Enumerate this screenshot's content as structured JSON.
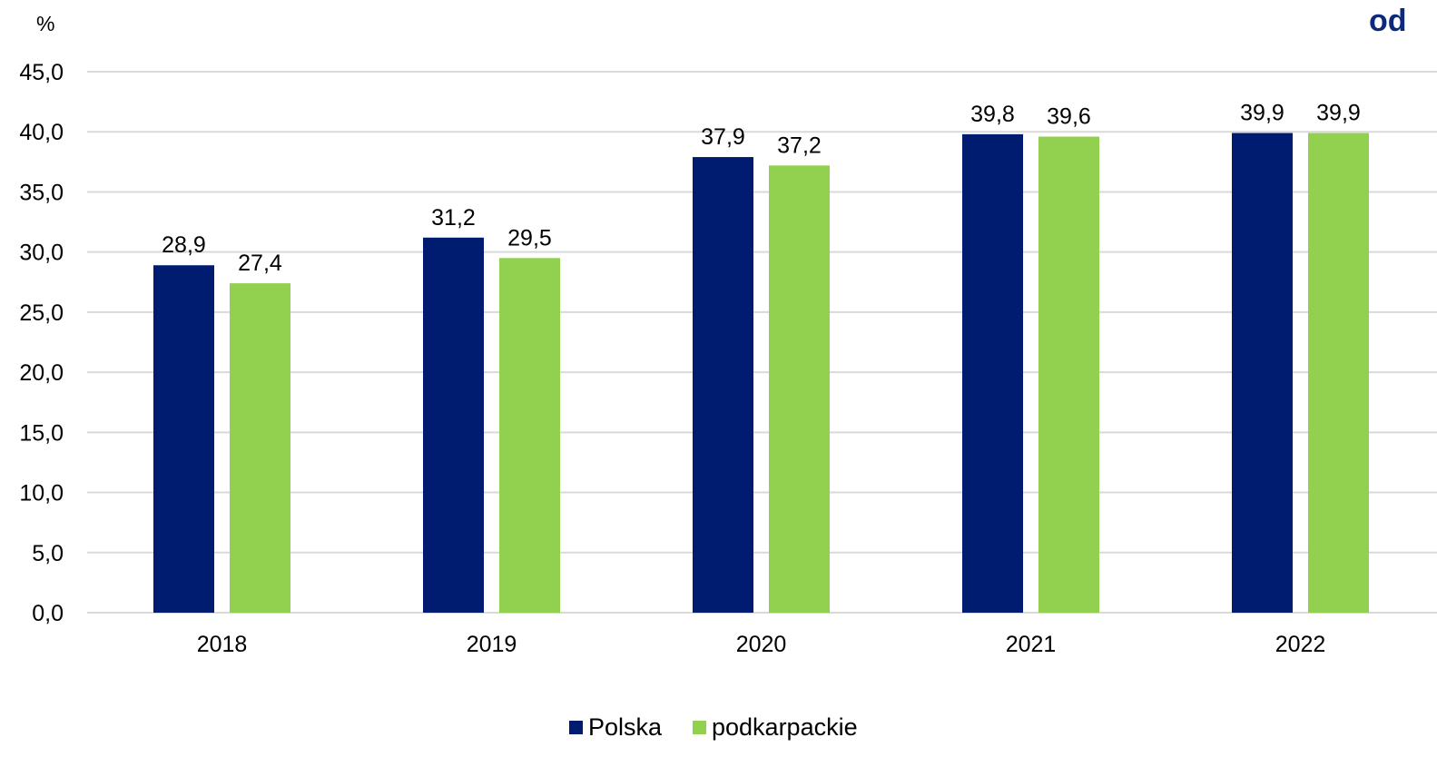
{
  "corner_text": "od",
  "chart_data": {
    "type": "bar",
    "title": "",
    "xlabel": "",
    "ylabel": "",
    "unit_label": "%",
    "categories": [
      "2018",
      "2019",
      "2020",
      "2021",
      "2022"
    ],
    "series": [
      {
        "name": "Polska",
        "color": "#001c71",
        "values": [
          28.9,
          31.2,
          37.9,
          39.8,
          39.9
        ],
        "labels": [
          "28,9",
          "31,2",
          "37,9",
          "39,8",
          "39,9"
        ]
      },
      {
        "name": "podkarpackie",
        "color": "#92d050",
        "values": [
          27.4,
          29.5,
          37.2,
          39.6,
          39.9
        ],
        "labels": [
          "27,4",
          "29,5",
          "37,2",
          "39,6",
          "39,9"
        ]
      }
    ],
    "ylim": [
      0,
      45
    ],
    "yticks": [
      0,
      5,
      10,
      15,
      20,
      25,
      30,
      35,
      40,
      45
    ],
    "ytick_labels": [
      "0,0",
      "5,0",
      "10,0",
      "15,0",
      "20,0",
      "25,0",
      "30,0",
      "35,0",
      "40,0",
      "45,0"
    ],
    "grid": true,
    "legend_position": "bottom-center"
  }
}
